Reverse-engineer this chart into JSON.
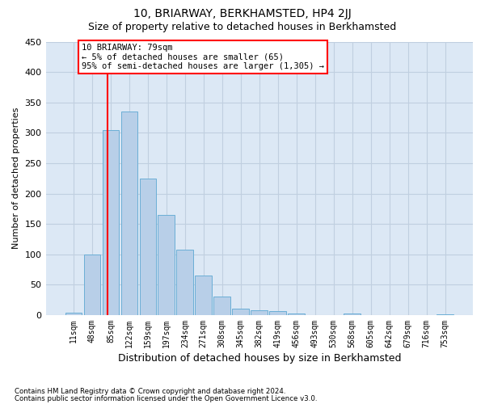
{
  "title": "10, BRIARWAY, BERKHAMSTED, HP4 2JJ",
  "subtitle": "Size of property relative to detached houses in Berkhamsted",
  "xlabel": "Distribution of detached houses by size in Berkhamsted",
  "ylabel": "Number of detached properties",
  "footnote1": "Contains HM Land Registry data © Crown copyright and database right 2024.",
  "footnote2": "Contains public sector information licensed under the Open Government Licence v3.0.",
  "bar_labels": [
    "11sqm",
    "48sqm",
    "85sqm",
    "122sqm",
    "159sqm",
    "197sqm",
    "234sqm",
    "271sqm",
    "308sqm",
    "345sqm",
    "382sqm",
    "419sqm",
    "456sqm",
    "493sqm",
    "530sqm",
    "568sqm",
    "605sqm",
    "642sqm",
    "679sqm",
    "716sqm",
    "753sqm"
  ],
  "bar_values": [
    4,
    100,
    305,
    335,
    225,
    165,
    108,
    65,
    30,
    10,
    8,
    6,
    2,
    0,
    0,
    2,
    0,
    0,
    0,
    0,
    1
  ],
  "bar_color": "#b8cfe8",
  "bar_edge_color": "#6baed6",
  "plot_bg_color": "#dce8f5",
  "fig_bg_color": "#ffffff",
  "grid_color": "#c0cfe0",
  "ylim": [
    0,
    450
  ],
  "yticks": [
    0,
    50,
    100,
    150,
    200,
    250,
    300,
    350,
    400,
    450
  ],
  "annotation_text": "10 BRIARWAY: 79sqm\n← 5% of detached houses are smaller (65)\n95% of semi-detached houses are larger (1,305) →",
  "vline_x": 1.85,
  "title_fontsize": 10,
  "subtitle_fontsize": 9
}
